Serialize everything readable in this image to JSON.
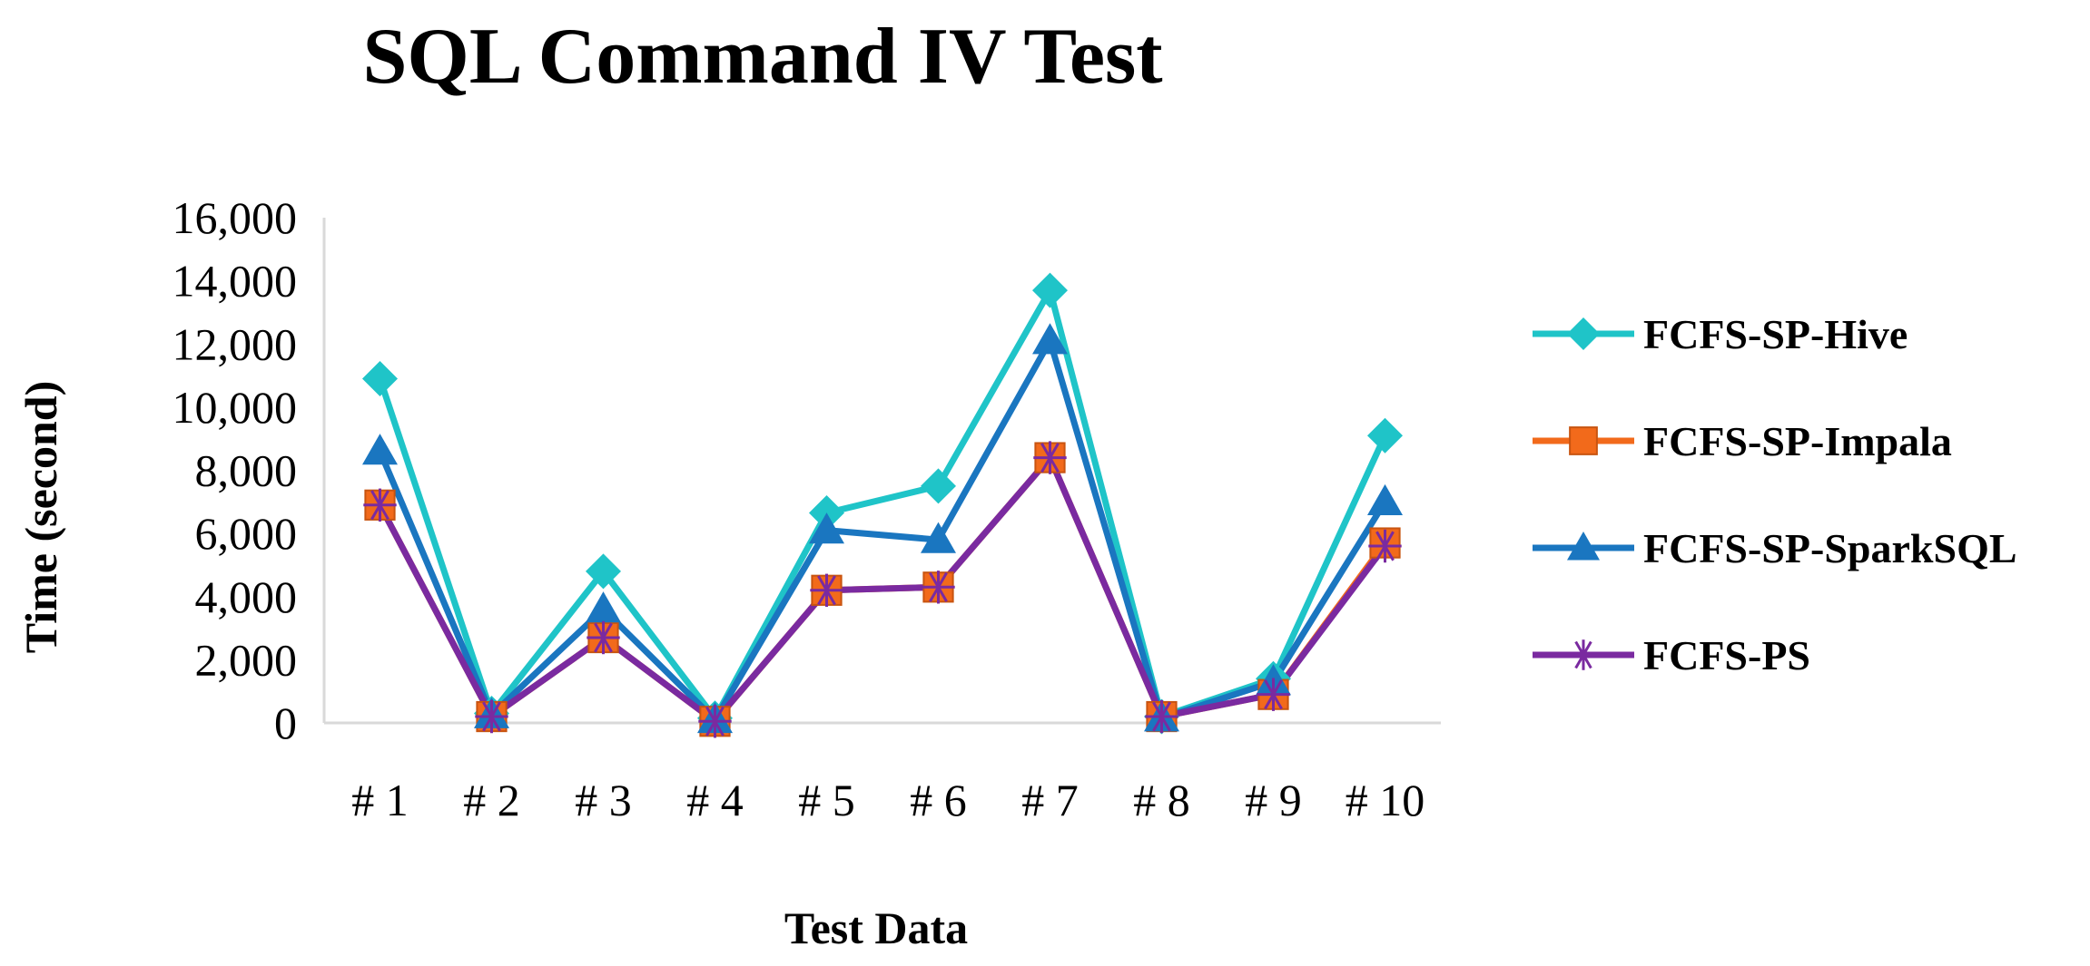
{
  "chart_data": {
    "type": "line",
    "title": "SQL Command IV Test",
    "xlabel": "Test Data",
    "ylabel": "Time (second)",
    "categories": [
      "# 1",
      "# 2",
      "# 3",
      "# 4",
      "# 5",
      "# 6",
      "# 7",
      "# 8",
      "# 9",
      "# 10"
    ],
    "ylim": [
      0,
      16000
    ],
    "yticks": [
      0,
      2000,
      4000,
      6000,
      8000,
      10000,
      12000,
      14000,
      16000
    ],
    "ytick_labels": [
      "0",
      "2,000",
      "4,000",
      "6,000",
      "8,000",
      "10,000",
      "12,000",
      "14,000",
      "16,000"
    ],
    "grid": false,
    "legend_position": "right",
    "series": [
      {
        "name": "FCFS-SP-Hive",
        "color": "#1fc4c8",
        "marker": "diamond",
        "values": [
          10900,
          300,
          4800,
          150,
          6650,
          7500,
          13700,
          200,
          1400,
          9100
        ]
      },
      {
        "name": "FCFS-SP-Impala",
        "color": "#f26a1b",
        "marker": "square",
        "values": [
          6900,
          200,
          2700,
          50,
          4200,
          4300,
          8400,
          200,
          900,
          5700
        ]
      },
      {
        "name": "FCFS-SP-SparkSQL",
        "color": "#1a76c0",
        "marker": "triangle",
        "values": [
          8600,
          250,
          3600,
          100,
          6100,
          5800,
          12100,
          150,
          1300,
          7000
        ]
      },
      {
        "name": "FCFS-PS",
        "color": "#7a2aa0",
        "marker": "asterisk",
        "values": [
          6900,
          200,
          2700,
          50,
          4200,
          4300,
          8400,
          200,
          900,
          5600
        ]
      }
    ]
  }
}
